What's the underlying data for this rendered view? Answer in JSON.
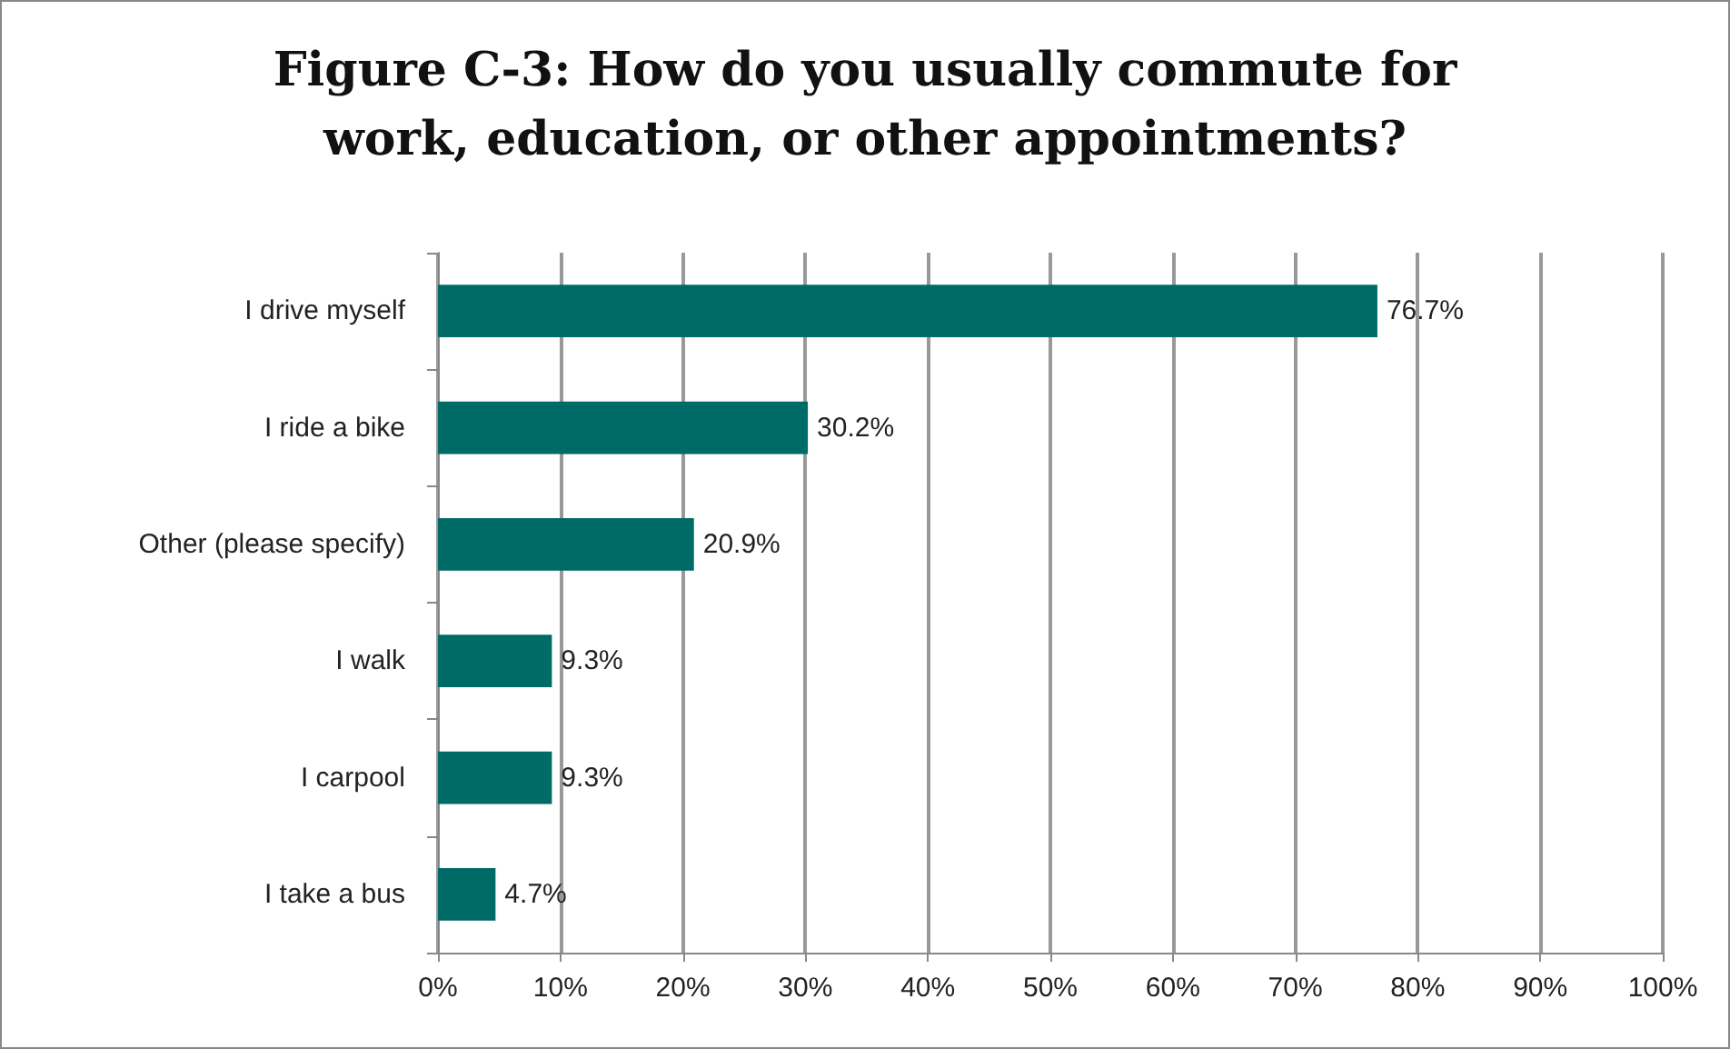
{
  "chart_data": {
    "type": "bar",
    "orientation": "horizontal",
    "title": "Figure C-3: How do you usually commute for\nwork, education, or other appointments?",
    "categories": [
      "I drive myself",
      "I ride a bike",
      "Other (please specify)",
      "I walk",
      "I carpool",
      "I take a bus"
    ],
    "values": [
      76.7,
      30.2,
      20.9,
      9.3,
      9.3,
      4.7
    ],
    "value_labels": [
      "76.7%",
      "30.2%",
      "20.9%",
      "9.3%",
      "9.3%",
      "4.7%"
    ],
    "color": "#006a66",
    "xlim": [
      0,
      100
    ],
    "xticks": [
      {
        "value": 0,
        "label": "0%"
      },
      {
        "value": 10,
        "label": "10%"
      },
      {
        "value": 20,
        "label": "20%"
      },
      {
        "value": 30,
        "label": "30%"
      },
      {
        "value": 40,
        "label": "40%"
      },
      {
        "value": 50,
        "label": "50%"
      },
      {
        "value": 60,
        "label": "60%"
      },
      {
        "value": 70,
        "label": "70%"
      },
      {
        "value": 80,
        "label": "80%"
      },
      {
        "value": 90,
        "label": "90%"
      },
      {
        "value": 100,
        "label": "100%"
      }
    ],
    "grid": "x"
  }
}
